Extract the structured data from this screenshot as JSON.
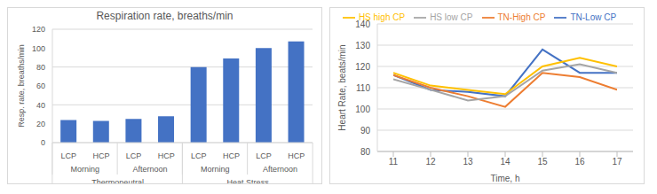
{
  "chart_data": [
    {
      "type": "bar",
      "title": "Respiration rate, breaths/min",
      "y_label": "Resp. rate, breaths/min",
      "categories": [
        "LCP",
        "HCP",
        "LCP",
        "HCP",
        "LCP",
        "HCP",
        "LCP",
        "HCP"
      ],
      "subgroups": [
        "Morning",
        "Morning",
        "Afternoon",
        "Afternoon",
        "Morning",
        "Morning",
        "Afternoon",
        "Afternoon"
      ],
      "groups": [
        "Thermoneutral",
        "Thermoneutral",
        "Thermoneutral",
        "Thermoneutral",
        "Heat Stress",
        "Heat Stress",
        "Heat Stress",
        "Heat Stress"
      ],
      "values": [
        24,
        23,
        25,
        28,
        80,
        89,
        100,
        107
      ],
      "color": "#4472c4",
      "ylim": [
        0,
        120
      ],
      "yticks": [
        0,
        20,
        40,
        60,
        80,
        100,
        120
      ],
      "grid": true
    },
    {
      "type": "line",
      "x_label": "Time, h",
      "y_label": "Heart Rate, beats/min",
      "x": [
        11,
        12,
        13,
        14,
        15,
        16,
        17
      ],
      "series": [
        {
          "name": "TN-Low CP",
          "color": "#4472c4",
          "values": [
            116,
            109,
            108,
            106,
            128,
            117,
            117
          ]
        },
        {
          "name": "TN-High CP",
          "color": "#ed7d31",
          "values": [
            116,
            110,
            106,
            101,
            117,
            115,
            109
          ]
        },
        {
          "name": "HS low CP",
          "color": "#a5a5a5",
          "values": [
            114,
            109,
            104,
            106,
            118,
            121,
            117
          ]
        },
        {
          "name": "HS high CP",
          "color": "#ffc000",
          "values": [
            117,
            111,
            109,
            107,
            120,
            124,
            120
          ]
        }
      ],
      "xlim": [
        11,
        17
      ],
      "xticks": [
        11,
        12,
        13,
        14,
        15,
        16,
        17
      ],
      "ylim": [
        80,
        140
      ],
      "yticks": [
        80,
        90,
        100,
        110,
        120,
        130,
        140
      ],
      "grid": true,
      "legend": "top"
    }
  ]
}
